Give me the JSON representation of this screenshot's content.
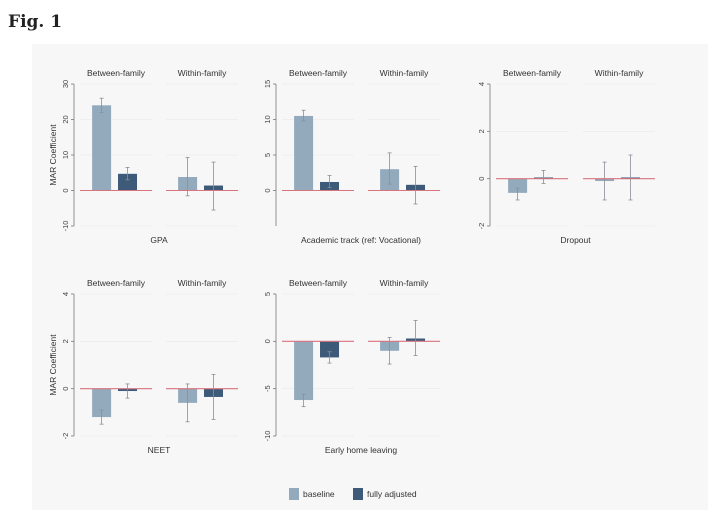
{
  "figure_title": "Fig. 1",
  "colors": {
    "baseline": "#93aabd",
    "fully_adjusted": "#3d5a79",
    "zero_line": "#d9737e",
    "whisker": "#8a8f96"
  },
  "chart_data": [
    {
      "type": "bar",
      "outcome": "GPA",
      "ylabel": "MAR Coefficient",
      "ylim": [
        -10,
        30
      ],
      "yticks": [
        -10,
        0,
        10,
        20,
        30
      ],
      "panels": [
        {
          "title": "Between-family",
          "baseline": {
            "value": 24,
            "ci": [
              22,
              26
            ]
          },
          "fully_adjusted": {
            "value": 4.7,
            "ci": [
              3,
              6.5
            ]
          }
        },
        {
          "title": "Within-family",
          "baseline": {
            "value": 3.8,
            "ci": [
              -1.5,
              9.3
            ]
          },
          "fully_adjusted": {
            "value": 1.4,
            "ci": [
              -5.5,
              8
            ]
          }
        }
      ]
    },
    {
      "type": "bar",
      "outcome": "Academic track (ref: Vocational)",
      "ylabel": "",
      "ylim": [
        -5,
        15
      ],
      "yticks": [
        0,
        5,
        10,
        15
      ],
      "panels": [
        {
          "title": "Between-family",
          "baseline": {
            "value": 10.5,
            "ci": [
              9.8,
              11.3
            ]
          },
          "fully_adjusted": {
            "value": 1.2,
            "ci": [
              0.4,
              2.1
            ]
          }
        },
        {
          "title": "Within-family",
          "baseline": {
            "value": 3,
            "ci": [
              0.9,
              5.3
            ]
          },
          "fully_adjusted": {
            "value": 0.8,
            "ci": [
              -1.9,
              3.4
            ]
          }
        }
      ]
    },
    {
      "type": "bar",
      "outcome": "Dropout",
      "ylabel": "",
      "ylim": [
        -2,
        4
      ],
      "yticks": [
        -2,
        0,
        2,
        4
      ],
      "panels": [
        {
          "title": "Between-family",
          "baseline": {
            "value": -0.6,
            "ci": [
              -0.9,
              -0.4
            ]
          },
          "fully_adjusted": {
            "value": 0.05,
            "ci": [
              -0.2,
              0.35
            ]
          }
        },
        {
          "title": "Within-family",
          "baseline": {
            "value": -0.1,
            "ci": [
              -0.9,
              0.7
            ]
          },
          "fully_adjusted": {
            "value": 0.05,
            "ci": [
              -0.9,
              1
            ]
          }
        }
      ]
    },
    {
      "type": "bar",
      "outcome": "NEET",
      "ylabel": "MAR Coefficient",
      "ylim": [
        -2,
        4
      ],
      "yticks": [
        -2,
        0,
        2,
        4
      ],
      "panels": [
        {
          "title": "Between-family",
          "baseline": {
            "value": -1.2,
            "ci": [
              -1.5,
              -0.9
            ]
          },
          "fully_adjusted": {
            "value": -0.1,
            "ci": [
              -0.4,
              0.2
            ]
          }
        },
        {
          "title": "Within-family",
          "baseline": {
            "value": -0.6,
            "ci": [
              -1.4,
              0.2
            ]
          },
          "fully_adjusted": {
            "value": -0.35,
            "ci": [
              -1.3,
              0.6
            ]
          }
        }
      ]
    },
    {
      "type": "bar",
      "outcome": "Early home leaving",
      "ylabel": "",
      "ylim": [
        -10,
        5
      ],
      "yticks": [
        -10,
        -5,
        0,
        5
      ],
      "panels": [
        {
          "title": "Between-family",
          "baseline": {
            "value": -6.2,
            "ci": [
              -6.9,
              -5.6
            ]
          },
          "fully_adjusted": {
            "value": -1.7,
            "ci": [
              -2.3,
              -1.1
            ]
          }
        },
        {
          "title": "Within-family",
          "baseline": {
            "value": -1,
            "ci": [
              -2.4,
              0.4
            ]
          },
          "fully_adjusted": {
            "value": 0.3,
            "ci": [
              -1.5,
              2.2
            ]
          }
        }
      ]
    }
  ],
  "legend": [
    {
      "key": "baseline",
      "label": "baseline"
    },
    {
      "key": "fully_adjusted",
      "label": "fully adjusted"
    }
  ]
}
